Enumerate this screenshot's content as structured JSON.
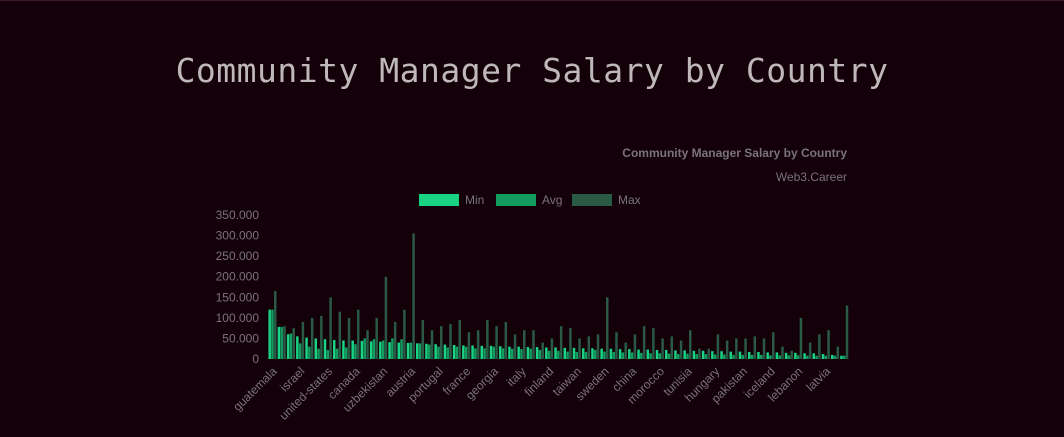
{
  "page": {
    "title": "Community Manager Salary by Country"
  },
  "chart_data": {
    "type": "bar",
    "title": "Community Manager Salary by Country",
    "subtitle": "Web3.Career",
    "ylim": [
      0,
      350000
    ],
    "yticks": [
      0,
      50000,
      100000,
      150000,
      200000,
      250000,
      300000,
      350000
    ],
    "ytick_labels": [
      "0",
      "50.000",
      "100.000",
      "150.000",
      "200.000",
      "250.000",
      "300.000",
      "350.000"
    ],
    "legend_position": "top-center",
    "grid": false,
    "colors": {
      "Min": "#1ad486",
      "Avg": "#129c60",
      "Max": "#2a5a46"
    },
    "categories": [
      "guatemala",
      "",
      "",
      "israel",
      "",
      "",
      "united-states",
      "",
      "",
      "canada",
      "",
      "",
      "uzbekistan",
      "",
      "",
      "austria",
      "",
      "",
      "portugal",
      "",
      "",
      "france",
      "",
      "",
      "georgia",
      "",
      "",
      "italy",
      "",
      "",
      "finland",
      "",
      "",
      "taiwan",
      "",
      "",
      "sweden",
      "",
      "",
      "china",
      "",
      "",
      "morocco",
      "",
      "",
      "tunisia",
      "",
      "",
      "hungary",
      "",
      "",
      "pakistan",
      "",
      "",
      "iceland",
      "",
      "",
      "lebanon",
      "",
      "",
      "latvia",
      "",
      ""
    ],
    "series": [
      {
        "name": "Min",
        "values": [
          120000,
          78000,
          60000,
          55000,
          52000,
          50000,
          48000,
          46000,
          45000,
          45000,
          44000,
          43000,
          42000,
          41000,
          40000,
          39000,
          38000,
          37000,
          36000,
          35000,
          34000,
          33000,
          33000,
          32000,
          32000,
          31000,
          30000,
          30000,
          29000,
          29000,
          28000,
          28000,
          27000,
          27000,
          26000,
          26000,
          25000,
          25000,
          24000,
          24000,
          23000,
          23000,
          22000,
          22000,
          21000,
          21000,
          20000,
          20000,
          19000,
          19000,
          18000,
          18000,
          17000,
          17000,
          16000,
          16000,
          15000,
          15000,
          14000,
          14000,
          12000,
          10000,
          8000
        ]
      },
      {
        "name": "Avg",
        "values": [
          120000,
          78000,
          62000,
          38000,
          30000,
          25000,
          22000,
          25000,
          28000,
          36000,
          50000,
          48000,
          45000,
          50000,
          48000,
          40000,
          38000,
          35000,
          30000,
          28000,
          30000,
          30000,
          26000,
          26000,
          30000,
          26000,
          25000,
          24000,
          25000,
          22000,
          20000,
          20000,
          18000,
          17000,
          17000,
          22000,
          18000,
          17000,
          16000,
          16000,
          15000,
          14000,
          14000,
          13000,
          12000,
          13000,
          12000,
          12000,
          11000,
          11000,
          10000,
          10000,
          10000,
          10000,
          9000,
          9000,
          9000,
          9000,
          8000,
          8000,
          8000,
          8000,
          8000
        ]
      },
      {
        "name": "Max",
        "values": [
          165000,
          80000,
          75000,
          90000,
          100000,
          105000,
          150000,
          115000,
          100000,
          120000,
          70000,
          100000,
          200000,
          90000,
          120000,
          305000,
          95000,
          70000,
          80000,
          85000,
          95000,
          65000,
          70000,
          95000,
          80000,
          90000,
          60000,
          70000,
          70000,
          40000,
          50000,
          80000,
          75000,
          50000,
          55000,
          60000,
          150000,
          65000,
          40000,
          60000,
          80000,
          75000,
          50000,
          55000,
          45000,
          70000,
          25000,
          25000,
          60000,
          45000,
          50000,
          50000,
          55000,
          50000,
          65000,
          30000,
          20000,
          100000,
          40000,
          60000,
          70000,
          30000,
          130000
        ]
      }
    ]
  }
}
